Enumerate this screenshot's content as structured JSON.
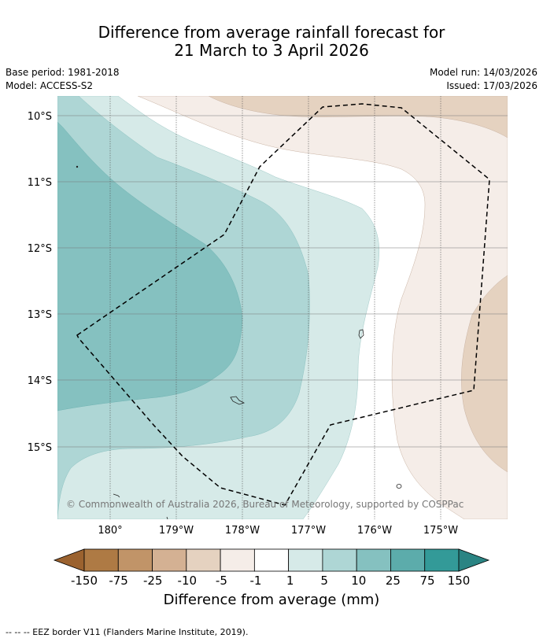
{
  "title": {
    "line1": "Difference from average rainfall forecast for",
    "line2": "21 March to 3 April 2026"
  },
  "meta": {
    "base_period": "Base period: 1981-2018",
    "model": "Model: ACCESS-S2",
    "model_run": "Model run: 14/03/2026",
    "issued": "Issued: 17/03/2026"
  },
  "map": {
    "lat_labels": [
      "10°S",
      "11°S",
      "12°S",
      "13°S",
      "14°S",
      "15°S"
    ],
    "lon_labels": [
      "180°",
      "179°W",
      "178°W",
      "177°W",
      "176°W",
      "175°W"
    ],
    "copyright": "© Commonwealth of Australia 2026, Bureau of Meteorology, supported by COSPPac"
  },
  "colorbar": {
    "ticks": [
      "-150",
      "-75",
      "-25",
      "-10",
      "-5",
      "-1",
      "1",
      "5",
      "10",
      "25",
      "75",
      "150"
    ],
    "colors": [
      "#ae7a44",
      "#c19468",
      "#d4b193",
      "#e5d2c0",
      "#f5ede8",
      "#ffffff",
      "#d6eae8",
      "#aed6d5",
      "#85c1c0",
      "#5cacab",
      "#339a98"
    ],
    "low_extend_color": "#9b622f",
    "high_extend_color": "#2a8483",
    "title": "Difference from average (mm)"
  },
  "footer": "-- -- -- EEZ border V11 (Flanders Marine Institute, 2019)."
}
